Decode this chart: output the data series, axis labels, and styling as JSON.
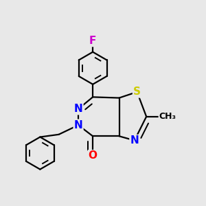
{
  "background_color": "#e8e8e8",
  "bond_color": "#000000",
  "atom_colors": {
    "N": "#0000ff",
    "O": "#ff0000",
    "S": "#cccc00",
    "F": "#cc00cc",
    "C": "#000000"
  },
  "bond_width": 1.6,
  "figsize": [
    3.0,
    3.0
  ],
  "dpi": 100,
  "xlim": [
    -0.15,
    1.05
  ],
  "ylim": [
    -0.05,
    1.1
  ]
}
